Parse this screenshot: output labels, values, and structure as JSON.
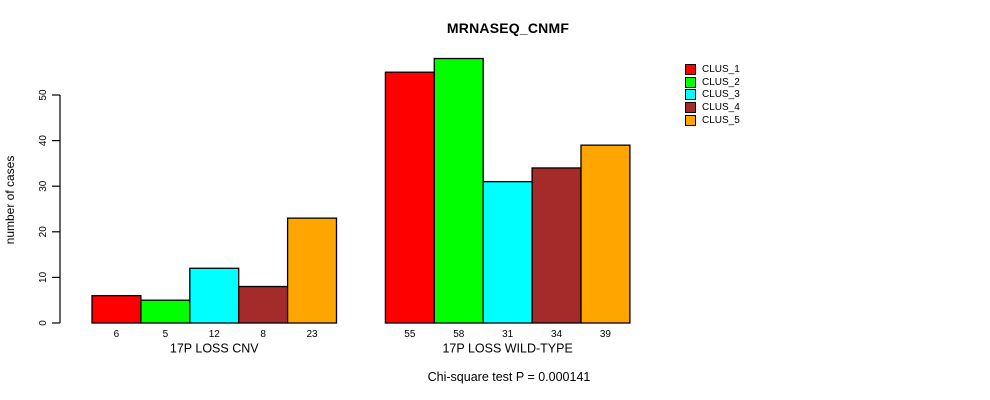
{
  "chart_data": {
    "type": "bar",
    "title": "MRNASEQ_CNMF",
    "ylabel": "number of cases",
    "footnote": "Chi-square test P = 0.000141",
    "categories": [
      "17P LOSS CNV",
      "17P LOSS WILD-TYPE"
    ],
    "series": [
      {
        "name": "CLUS_1",
        "color": "#FF0000",
        "values": [
          6,
          55
        ]
      },
      {
        "name": "CLUS_2",
        "color": "#00FF00",
        "values": [
          5,
          58
        ]
      },
      {
        "name": "CLUS_3",
        "color": "#00FFFF",
        "values": [
          12,
          31
        ]
      },
      {
        "name": "CLUS_4",
        "color": "#A52A2A",
        "values": [
          8,
          34
        ]
      },
      {
        "name": "CLUS_5",
        "color": "#FFA500",
        "values": [
          23,
          39
        ]
      }
    ],
    "yticks": [
      0,
      10,
      20,
      30,
      40,
      50
    ],
    "ylim": [
      0,
      58
    ],
    "show_bar_values": true,
    "grid": false,
    "legend_position": "right",
    "axis_color": "#000000",
    "background_color": "#ffffff"
  }
}
